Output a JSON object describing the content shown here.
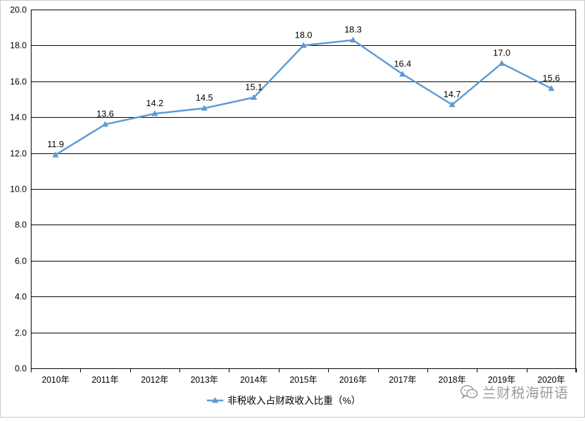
{
  "chart_data": {
    "type": "line",
    "categories": [
      "2010年",
      "2011年",
      "2012年",
      "2013年",
      "2014年",
      "2015年",
      "2016年",
      "2017年",
      "2018年",
      "2019年",
      "2020年"
    ],
    "series": [
      {
        "name": "非税收入占财政收入比重（%）",
        "values": [
          11.9,
          13.6,
          14.2,
          14.5,
          15.1,
          18.0,
          18.3,
          16.4,
          14.7,
          17.0,
          15.6
        ],
        "labels": [
          "11.9",
          "13.6",
          "14.2",
          "14.5",
          "15.1",
          "18.0",
          "18.3",
          "16.4",
          "14.7",
          "17.0",
          "15.6"
        ],
        "color": "#5b9bd5",
        "marker": "triangle"
      }
    ],
    "yticks": [
      "0.0",
      "2.0",
      "4.0",
      "6.0",
      "8.0",
      "10.0",
      "12.0",
      "14.0",
      "16.0",
      "18.0",
      "20.0"
    ],
    "ylim": [
      0,
      20
    ],
    "grid": true,
    "legend_position": "bottom"
  },
  "watermark": {
    "text": "兰财税海研语",
    "icon": "wechat-icon"
  },
  "colors": {
    "line": "#5b9bd5",
    "grid": "#000000",
    "text": "#000000"
  }
}
